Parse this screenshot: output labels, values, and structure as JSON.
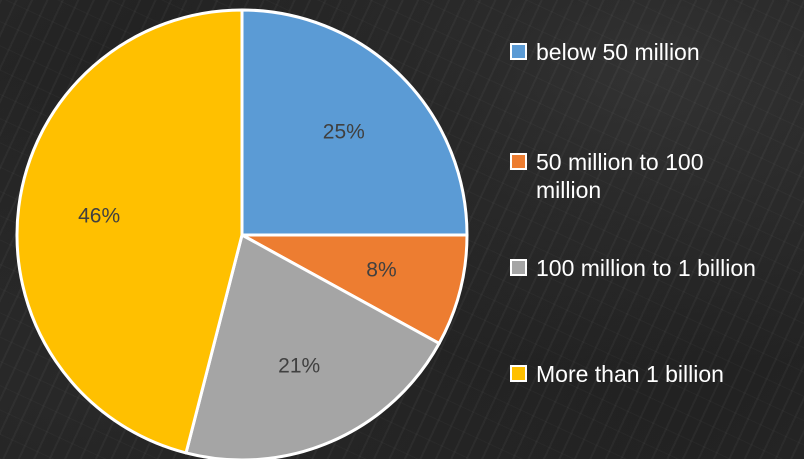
{
  "chart_data": {
    "type": "pie",
    "title": "",
    "slices": [
      {
        "label": "below 50 million",
        "value": 25,
        "display": "25%",
        "color": "#5B9BD5"
      },
      {
        "label": "50 million to 100 million",
        "value": 8,
        "display": "8%",
        "color": "#ED7D31"
      },
      {
        "label": "100 million to 1 billion",
        "value": 21,
        "display": "21%",
        "color": "#A5A5A5"
      },
      {
        "label": "More than 1 billion",
        "value": 46,
        "display": "46%",
        "color": "#FFC000"
      }
    ],
    "legend_position": "right"
  }
}
